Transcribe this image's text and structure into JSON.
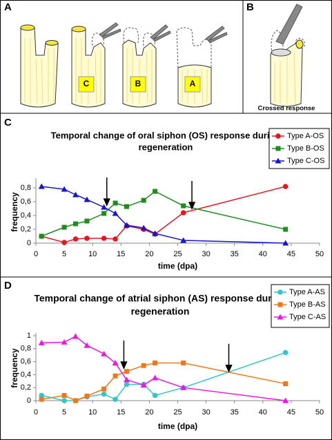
{
  "panels": [
    "A",
    "B",
    "C",
    "D"
  ],
  "illustration": {
    "labels": [
      "C",
      "B",
      "A"
    ],
    "caption": "Crossed response"
  },
  "chart_data": [
    {
      "type": "line",
      "title": [
        "Temporal change of oral siphon (OS) response during",
        "regeneration"
      ],
      "x_label": "time (dpa)",
      "y_label": "frequency",
      "x": [
        1,
        5,
        7,
        9,
        12,
        14,
        16,
        19,
        21,
        26,
        44
      ],
      "series": [
        {
          "name": "Type A-OS",
          "color": "#e8141e",
          "marker": "circle",
          "values": [
            0.1,
            0.01,
            0.06,
            0.07,
            0.07,
            0.06,
            0.25,
            0.2,
            0.13,
            0.44,
            0.82
          ]
        },
        {
          "name": "Type B-OS",
          "color": "#1e8c1e",
          "marker": "square",
          "values": [
            0.1,
            0.23,
            0.28,
            0.32,
            0.43,
            0.58,
            0.53,
            0.62,
            0.75,
            0.54,
            0.2
          ]
        },
        {
          "name": "Type C-OS",
          "color": "#1414d2",
          "marker": "triangle",
          "values": [
            0.82,
            0.78,
            0.7,
            0.63,
            0.52,
            0.43,
            0.26,
            0.22,
            0.14,
            0.04,
            0.0
          ]
        }
      ],
      "arrows": [
        {
          "x": 12.5,
          "y": 0.55
        },
        {
          "x": 27.5,
          "y": 0.5
        }
      ],
      "xlim": [
        0,
        50
      ],
      "xticks": [
        0,
        5,
        10,
        15,
        20,
        25,
        30,
        35,
        40,
        45,
        50
      ],
      "ylim": [
        0,
        0.9
      ],
      "yticks": [
        0,
        {
          "value": 0.2,
          "label": "0,2"
        },
        {
          "value": 0.4,
          "label": "0,4"
        },
        {
          "value": 0.6,
          "label": "0,6"
        },
        {
          "value": 0.8,
          "label": "0,8"
        }
      ],
      "grid": false,
      "legend": "upper right"
    },
    {
      "type": "line",
      "title": [
        "Temporal change of atrial siphon (AS) response during",
        "regeneration"
      ],
      "x_label": "time (dpa)",
      "y_label": "frequency",
      "x": [
        1,
        5,
        7,
        9,
        12,
        14,
        16,
        19,
        21,
        26,
        44
      ],
      "series": [
        {
          "name": "Type A-AS",
          "color": "#33c4cc",
          "marker": "circle",
          "values": [
            0.08,
            0.0,
            0.0,
            0.06,
            0.1,
            0.02,
            0.25,
            0.25,
            0.08,
            0.2,
            0.74
          ]
        },
        {
          "name": "Type B-AS",
          "color": "#f07814",
          "marker": "square",
          "values": [
            0.02,
            0.08,
            0.0,
            0.07,
            0.18,
            0.38,
            0.45,
            0.54,
            0.58,
            0.58,
            0.26
          ]
        },
        {
          "name": "Type C-AS",
          "color": "#f014e6",
          "marker": "triangle",
          "values": [
            0.89,
            0.9,
            0.99,
            0.85,
            0.72,
            0.58,
            0.32,
            0.24,
            0.35,
            0.2,
            0.0
          ]
        }
      ],
      "arrows": [
        {
          "x": 15.5,
          "y": 0.5
        },
        {
          "x": 34,
          "y": 0.45
        }
      ],
      "xlim": [
        0,
        50
      ],
      "xticks": [
        0,
        5,
        10,
        15,
        20,
        25,
        30,
        35,
        40,
        45,
        50
      ],
      "ylim": [
        0,
        1
      ],
      "yticks": [
        0,
        {
          "value": 0.2,
          "label": "0,2"
        },
        {
          "value": 0.4,
          "label": "0,4"
        },
        {
          "value": 0.6,
          "label": "0,6"
        },
        {
          "value": 0.8,
          "label": "0,8"
        },
        1
      ],
      "grid": false,
      "legend": "upper right"
    }
  ]
}
